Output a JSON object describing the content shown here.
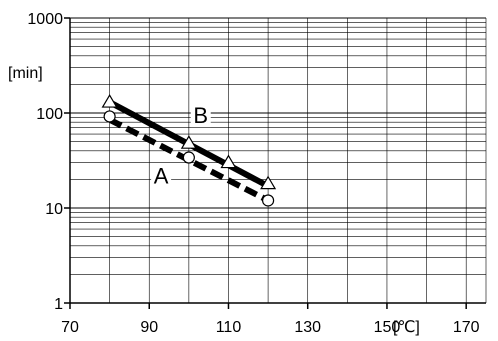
{
  "chart_data": {
    "type": "line",
    "title": "",
    "xlabel": "",
    "ylabel": "",
    "x_unit_label": "[℃]",
    "y_unit_label": "[min]",
    "xlim": [
      70,
      175
    ],
    "ylim": [
      1,
      1000
    ],
    "y_scale": "log",
    "x_ticks": [
      {
        "value": 70,
        "label": "70"
      },
      {
        "value": 90,
        "label": "90"
      },
      {
        "value": 110,
        "label": "110"
      },
      {
        "value": 130,
        "label": "130"
      },
      {
        "value": 150,
        "label": "150"
      },
      {
        "value": 170,
        "label": "170"
      }
    ],
    "y_ticks": [
      {
        "value": 1,
        "label": "1"
      },
      {
        "value": 10,
        "label": "10"
      },
      {
        "value": 100,
        "label": "100"
      },
      {
        "value": 1000,
        "label": "1000"
      }
    ],
    "grid": true,
    "series": [
      {
        "name": "B",
        "style": "solid",
        "marker": "triangle",
        "color": "#000000",
        "line": {
          "x": [
            80,
            120
          ],
          "y": [
            130,
            17
          ]
        },
        "points": {
          "x": [
            80,
            100,
            110,
            120
          ],
          "y": [
            130,
            48,
            30,
            18
          ]
        },
        "label_at": {
          "x": 103,
          "y": 95
        }
      },
      {
        "name": "A",
        "style": "dashed",
        "marker": "circle",
        "color": "#000000",
        "line": {
          "x": [
            80,
            120
          ],
          "y": [
            85,
            12
          ]
        },
        "points": {
          "x": [
            80,
            100,
            120
          ],
          "y": [
            92,
            34,
            12
          ]
        },
        "label_at": {
          "x": 93,
          "y": 22
        }
      }
    ]
  }
}
